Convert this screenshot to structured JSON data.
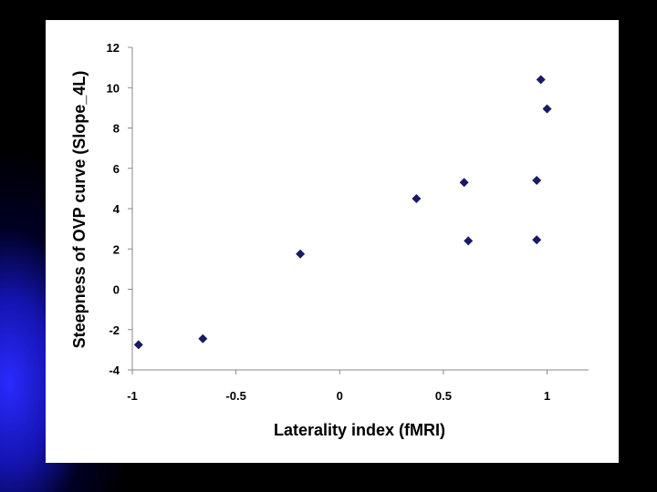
{
  "chart_data": {
    "type": "scatter",
    "xlabel": "Laterality index (fMRI)",
    "ylabel": "Steepness of OVP curve (Slope_4L)",
    "xlim": [
      -1,
      1.2
    ],
    "ylim": [
      -4,
      12
    ],
    "x_ticks": [
      "-1",
      "-0.5",
      "0",
      "0.5",
      "1"
    ],
    "y_ticks": [
      "-4",
      "-2",
      "0",
      "2",
      "4",
      "6",
      "8",
      "10",
      "12"
    ],
    "grid": false,
    "marker_color": "#1a1a66",
    "marker": "diamond",
    "series": [
      {
        "points": [
          {
            "x": -0.97,
            "y": -2.75
          },
          {
            "x": -0.66,
            "y": -2.45
          },
          {
            "x": -0.19,
            "y": 1.75
          },
          {
            "x": 0.37,
            "y": 4.5
          },
          {
            "x": 0.6,
            "y": 5.3
          },
          {
            "x": 0.62,
            "y": 2.4
          },
          {
            "x": 0.95,
            "y": 2.45
          },
          {
            "x": 0.95,
            "y": 5.4
          },
          {
            "x": 0.97,
            "y": 10.4
          },
          {
            "x": 1.0,
            "y": 8.95
          }
        ]
      }
    ]
  }
}
